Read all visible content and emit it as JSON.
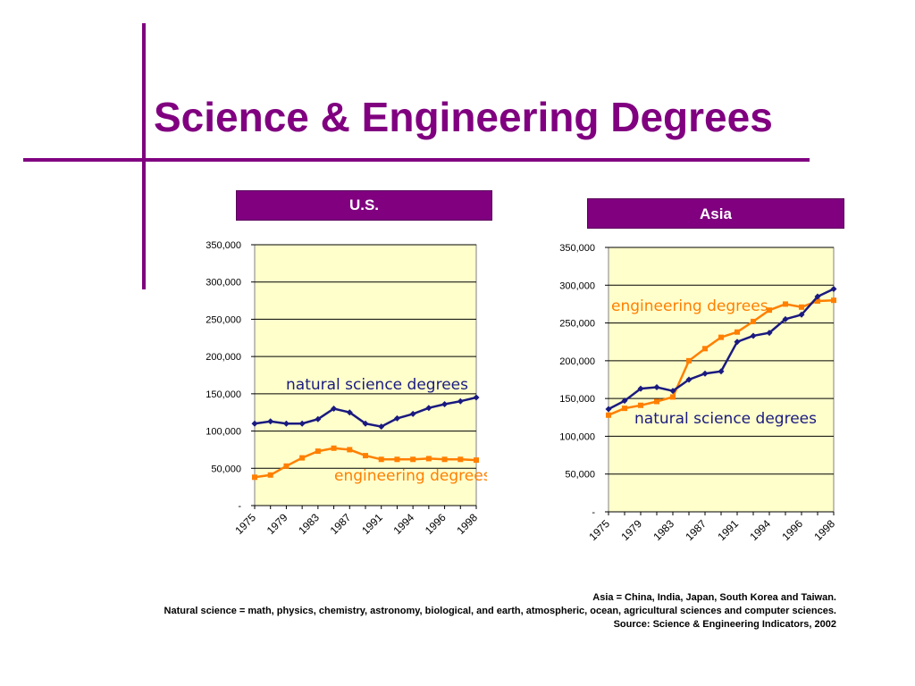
{
  "slide": {
    "title": "Science & Engineering Degrees",
    "accent_color": "#800080"
  },
  "panels": {
    "us_label": "U.S.",
    "asia_label": "Asia"
  },
  "chart_data": [
    {
      "id": "us",
      "type": "line",
      "plot_background": "#FFFFCC",
      "ylim": [
        0,
        350000
      ],
      "yticks": [
        0,
        50000,
        100000,
        150000,
        200000,
        250000,
        300000,
        350000
      ],
      "ytick_labels": [
        "-",
        "50,000",
        "100,000",
        "150,000",
        "200,000",
        "250,000",
        "300,000",
        "350,000"
      ],
      "xtick_labels": [
        "1975",
        "1979",
        "1983",
        "1987",
        "1991",
        "1994",
        "1996",
        "1998"
      ],
      "grid": true,
      "series": [
        {
          "name": "natural science degrees",
          "color": "#1a1a80",
          "marker": "diamond",
          "values": [
            110000,
            113000,
            110000,
            110000,
            116000,
            130000,
            125000,
            110000,
            106000,
            117000,
            123000,
            131000,
            136000,
            140000,
            145000
          ]
        },
        {
          "name": "engineering degrees",
          "color": "#ff7f00",
          "marker": "square",
          "values": [
            38000,
            41000,
            53000,
            64000,
            73000,
            77000,
            75000,
            67000,
            62000,
            62000,
            62000,
            63000,
            62000,
            62000,
            61000
          ]
        }
      ]
    },
    {
      "id": "asia",
      "type": "line",
      "plot_background": "#FFFFCC",
      "ylim": [
        0,
        350000
      ],
      "yticks": [
        0,
        50000,
        100000,
        150000,
        200000,
        250000,
        300000,
        350000
      ],
      "ytick_labels": [
        "-",
        "50,000",
        "100,000",
        "150,000",
        "200,000",
        "250,000",
        "300,000",
        "350,000"
      ],
      "xtick_labels": [
        "1975",
        "1979",
        "1983",
        "1987",
        "1991",
        "1994",
        "1996",
        "1998"
      ],
      "grid": true,
      "series": [
        {
          "name": "engineering degrees",
          "color": "#ff7f00",
          "marker": "square",
          "values": [
            128000,
            137000,
            141000,
            146000,
            152000,
            200000,
            216000,
            231000,
            238000,
            252000,
            267000,
            275000,
            271000,
            279000,
            280000
          ]
        },
        {
          "name": "natural science degrees",
          "color": "#1a1a80",
          "marker": "diamond",
          "values": [
            136000,
            147000,
            163000,
            165000,
            160000,
            175000,
            183000,
            186000,
            225000,
            233000,
            237000,
            255000,
            261000,
            285000,
            295000
          ]
        }
      ]
    }
  ],
  "notes": {
    "line1": "Asia = China, India, Japan, South Korea and Taiwan.",
    "line2": "Natural science = math, physics, chemistry, astronomy,  biological, and earth, atmospheric, ocean, agricultural sciences and computer sciences.",
    "line3": "Source: Science & Engineering Indicators, 2002"
  }
}
